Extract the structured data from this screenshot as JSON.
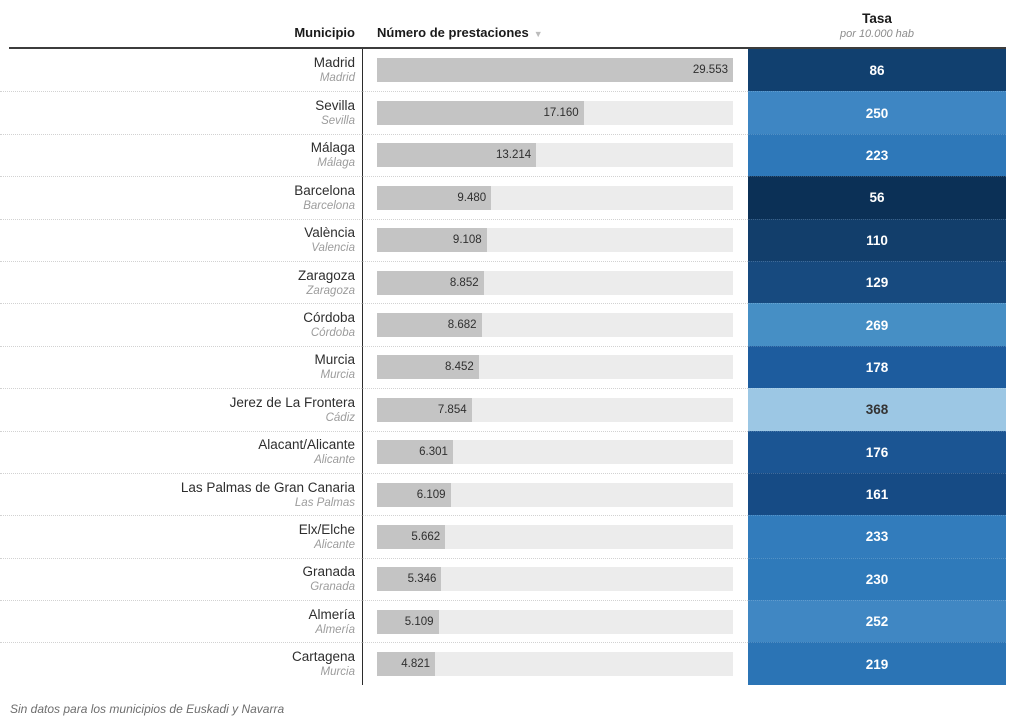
{
  "header": {
    "municipio_label": "Municipio",
    "prestaciones_label": "Número de prestaciones",
    "sort_glyph": "▼",
    "tasa_label": "Tasa",
    "tasa_sublabel": "por 10.000 hab"
  },
  "footnote": "Sin datos para los municipios de Euskadi y Navarra",
  "colors": {
    "bar_fill": "#c4c4c4",
    "bar_track": "#ececec",
    "header_rule": "#3c3c3c",
    "column_divider": "#2b2b2b",
    "row_separator": "#d2d2d2"
  },
  "chart_data": {
    "type": "table",
    "columns": [
      "Municipio",
      "Número de prestaciones",
      "Tasa por 10.000 hab"
    ],
    "sort": {
      "column": "Número de prestaciones",
      "direction": "desc"
    },
    "max_prestaciones": 29553,
    "rows": [
      {
        "municipio": "Madrid",
        "provincia": "Madrid",
        "prestaciones": 29553,
        "prestaciones_label": "29.553",
        "tasa": 86,
        "cell_color": "#11406f",
        "text_color": "#ffffff"
      },
      {
        "municipio": "Sevilla",
        "provincia": "Sevilla",
        "prestaciones": 17160,
        "prestaciones_label": "17.160",
        "tasa": 250,
        "cell_color": "#3e86c3",
        "text_color": "#ffffff"
      },
      {
        "municipio": "Málaga",
        "provincia": "Málaga",
        "prestaciones": 13214,
        "prestaciones_label": "13.214",
        "tasa": 223,
        "cell_color": "#2e78b9",
        "text_color": "#ffffff"
      },
      {
        "municipio": "Barcelona",
        "provincia": "Barcelona",
        "prestaciones": 9480,
        "prestaciones_label": "9.480",
        "tasa": 56,
        "cell_color": "#0b3056",
        "text_color": "#ffffff"
      },
      {
        "municipio": "València",
        "provincia": "Valencia",
        "prestaciones": 9108,
        "prestaciones_label": "9.108",
        "tasa": 110,
        "cell_color": "#123e6b",
        "text_color": "#ffffff"
      },
      {
        "municipio": "Zaragoza",
        "provincia": "Zaragoza",
        "prestaciones": 8852,
        "prestaciones_label": "8.852",
        "tasa": 129,
        "cell_color": "#174a7f",
        "text_color": "#ffffff"
      },
      {
        "municipio": "Córdoba",
        "provincia": "Córdoba",
        "prestaciones": 8682,
        "prestaciones_label": "8.682",
        "tasa": 269,
        "cell_color": "#468fc5",
        "text_color": "#ffffff"
      },
      {
        "municipio": "Murcia",
        "provincia": "Murcia",
        "prestaciones": 8452,
        "prestaciones_label": "8.452",
        "tasa": 178,
        "cell_color": "#1d5c9e",
        "text_color": "#ffffff"
      },
      {
        "municipio": "Jerez de La Frontera",
        "provincia": "Cádiz",
        "prestaciones": 7854,
        "prestaciones_label": "7.854",
        "tasa": 368,
        "cell_color": "#9cc7e4",
        "text_color": "#333333"
      },
      {
        "municipio": "Alacant/Alicante",
        "provincia": "Alicante",
        "prestaciones": 6301,
        "prestaciones_label": "6.301",
        "tasa": 176,
        "cell_color": "#1b5593",
        "text_color": "#ffffff"
      },
      {
        "municipio": "Las Palmas de Gran Canaria",
        "provincia": "Las Palmas",
        "prestaciones": 6109,
        "prestaciones_label": "6.109",
        "tasa": 161,
        "cell_color": "#164b85",
        "text_color": "#ffffff"
      },
      {
        "municipio": "Elx/Elche",
        "provincia": "Alicante",
        "prestaciones": 5662,
        "prestaciones_label": "5.662",
        "tasa": 233,
        "cell_color": "#327cbc",
        "text_color": "#ffffff"
      },
      {
        "municipio": "Granada",
        "provincia": "Granada",
        "prestaciones": 5346,
        "prestaciones_label": "5.346",
        "tasa": 230,
        "cell_color": "#2f7aba",
        "text_color": "#ffffff"
      },
      {
        "municipio": "Almería",
        "provincia": "Almería",
        "prestaciones": 5109,
        "prestaciones_label": "5.109",
        "tasa": 252,
        "cell_color": "#4087c3",
        "text_color": "#ffffff"
      },
      {
        "municipio": "Cartagena",
        "provincia": "Murcia",
        "prestaciones": 4821,
        "prestaciones_label": "4.821",
        "tasa": 219,
        "cell_color": "#2b74b5",
        "text_color": "#ffffff"
      }
    ]
  }
}
